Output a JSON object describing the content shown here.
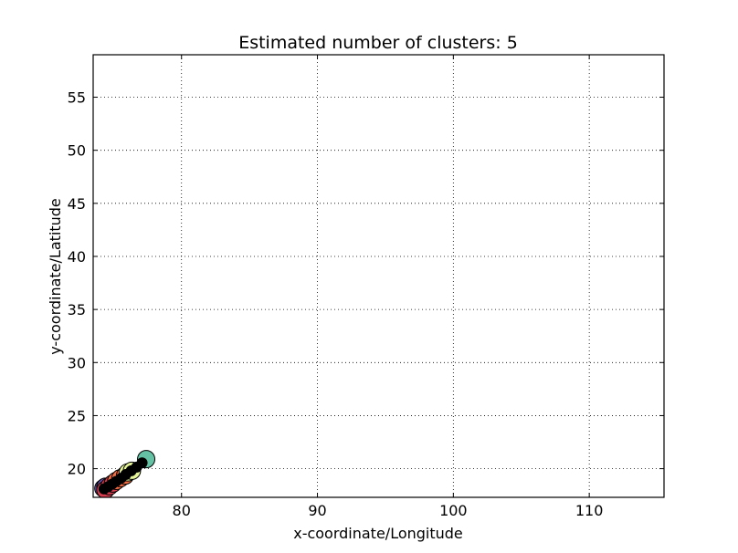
{
  "chart_data": {
    "type": "scatter",
    "title": "Estimated number of clusters: 5",
    "xlabel": "x-coordinate/Longitude",
    "ylabel": "y-coordinate/Latitude",
    "xlim": [
      73.5,
      115.5
    ],
    "ylim": [
      17.3,
      59
    ],
    "xticks": [
      80,
      90,
      100,
      110
    ],
    "yticks": [
      20,
      25,
      30,
      35,
      40,
      45,
      50,
      55
    ],
    "grid": true,
    "series": [
      {
        "color": "#5e4fa2",
        "points": [
          [
            74.25,
            18.15
          ],
          [
            74.4,
            18.3
          ]
        ]
      },
      {
        "color": "#d53e4f",
        "points": [
          [
            74.4,
            18.0
          ],
          [
            74.7,
            18.35
          ],
          [
            74.95,
            18.6
          ]
        ]
      },
      {
        "color": "#f46d43",
        "points": [
          [
            75.2,
            18.85
          ],
          [
            75.5,
            19.1
          ],
          [
            75.85,
            19.35
          ]
        ]
      },
      {
        "color": "#e6f598",
        "points": [
          [
            76.05,
            19.65
          ],
          [
            76.35,
            19.8
          ]
        ]
      },
      {
        "color": "#66c2a5",
        "points": [
          [
            77.4,
            20.9
          ]
        ]
      }
    ],
    "core_points": [
      [
        74.3,
        18.1
      ],
      [
        74.6,
        18.3
      ],
      [
        74.9,
        18.55
      ],
      [
        75.2,
        18.8
      ],
      [
        75.55,
        19.1
      ],
      [
        75.9,
        19.45
      ],
      [
        76.3,
        19.8
      ],
      [
        76.7,
        20.15
      ],
      [
        77.1,
        20.55
      ]
    ],
    "core_color": "#000000",
    "marker_edge": "#000000"
  }
}
